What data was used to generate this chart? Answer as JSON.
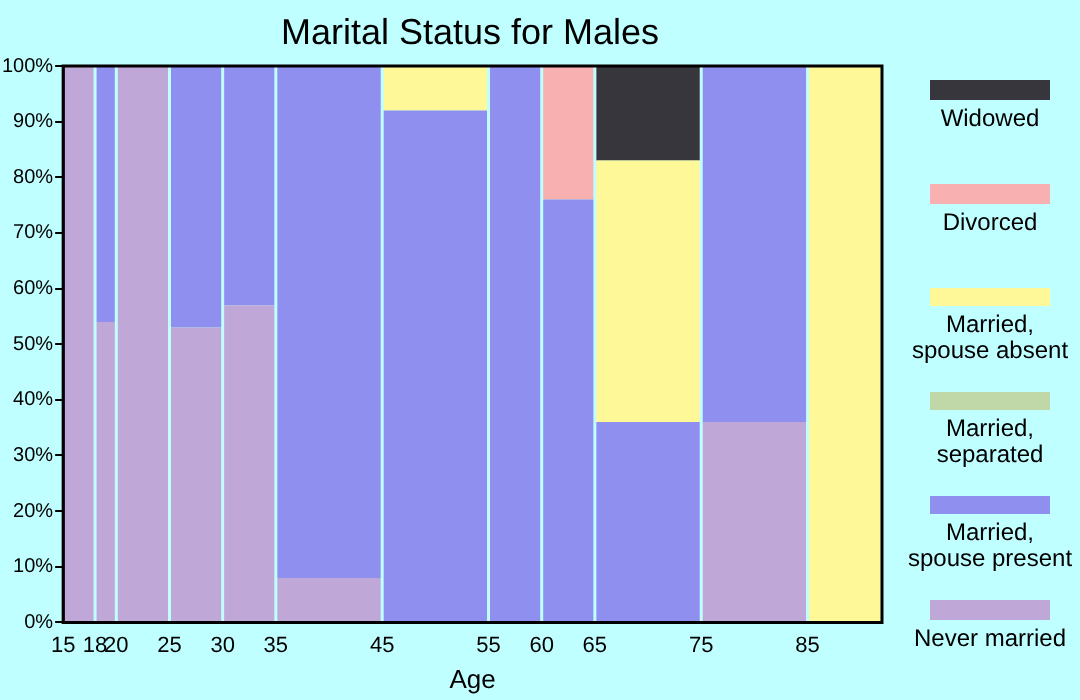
{
  "chart_data": {
    "type": "bar",
    "title": "Marital Status for Males",
    "xlabel": "Age",
    "stacked": true,
    "x": [
      16.5,
      19,
      22.5,
      27.5,
      32.5,
      40,
      50,
      57.5,
      62.5,
      70,
      80,
      88.5
    ],
    "series": [
      {
        "name": "Never married",
        "color": "#bfa8d8",
        "values": [
          100,
          54,
          100,
          53,
          57,
          8,
          0,
          0,
          0,
          0,
          36,
          0
        ]
      },
      {
        "name": "Married, spouse present",
        "color": "#8f8ff0",
        "values": [
          0,
          46,
          0,
          47,
          43,
          92,
          92,
          100,
          76,
          36,
          64,
          0
        ]
      },
      {
        "name": "Married, separated",
        "color": "#c0d8a8",
        "values": [
          0,
          0,
          0,
          0,
          0,
          0,
          0,
          0,
          0,
          0,
          0,
          0
        ]
      },
      {
        "name": "Married, spouse absent",
        "color": "#fff899",
        "values": [
          0,
          0,
          0,
          0,
          0,
          0,
          8,
          0,
          0,
          47,
          0,
          100
        ]
      },
      {
        "name": "Divorced",
        "color": "#f8b0b0",
        "values": [
          0,
          0,
          0,
          0,
          0,
          0,
          0,
          0,
          24,
          0,
          0,
          0
        ]
      },
      {
        "name": "Widowed",
        "color": "#36363c",
        "values": [
          0,
          0,
          0,
          0,
          0,
          0,
          0,
          0,
          0,
          17,
          0,
          0
        ]
      }
    ],
    "xlim": [
      15,
      92
    ],
    "xticks": [
      15,
      18,
      20,
      25,
      30,
      35,
      45,
      55,
      60,
      65,
      75,
      85
    ],
    "ylim": [
      0,
      100
    ],
    "yticks": [
      {
        "value": 0,
        "label": "0%"
      },
      {
        "value": 10,
        "label": "10%"
      },
      {
        "value": 20,
        "label": "20%"
      },
      {
        "value": 30,
        "label": "30%"
      },
      {
        "value": 40,
        "label": "40%"
      },
      {
        "value": 50,
        "label": "50%"
      },
      {
        "value": 60,
        "label": "60%"
      },
      {
        "value": 70,
        "label": "70%"
      },
      {
        "value": 80,
        "label": "80%"
      },
      {
        "value": 90,
        "label": "90%"
      },
      {
        "value": 100,
        "label": "100%"
      }
    ],
    "legend": "right"
  }
}
